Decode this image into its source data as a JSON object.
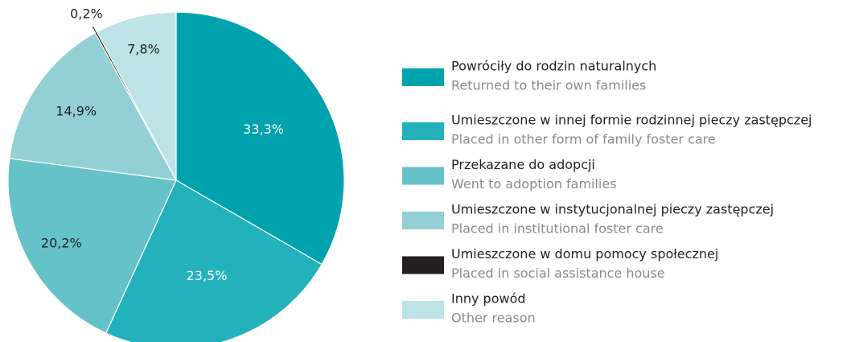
{
  "chart_data": {
    "type": "pie",
    "categories": [
      "Powróciły do rodzin naturalnych",
      "Umieszczone w innej formie rodzinnej pieczy zastępczej",
      "Przekazane do adopcji",
      "Umieszczone w instytucjonalnej pieczy zastępczej",
      "Umieszczone w domu pomocy społecznej",
      "Inny powód"
    ],
    "categories_en": [
      "Returned to their own families",
      "Placed in other form of family foster care",
      "Went to adoption families",
      "Placed in institutional foster care",
      "Placed in social assistance house",
      "Other reason"
    ],
    "values": [
      33.3,
      23.5,
      20.2,
      14.9,
      0.2,
      7.8
    ],
    "value_labels": [
      "33,3%",
      "23,5%",
      "20,2%",
      "14,9%",
      "0,2%",
      "7,8%"
    ],
    "colors": [
      "#00a3ad",
      "#23b2bb",
      "#66c2c9",
      "#93d0d5",
      "#231f20",
      "#bde3e6"
    ]
  }
}
